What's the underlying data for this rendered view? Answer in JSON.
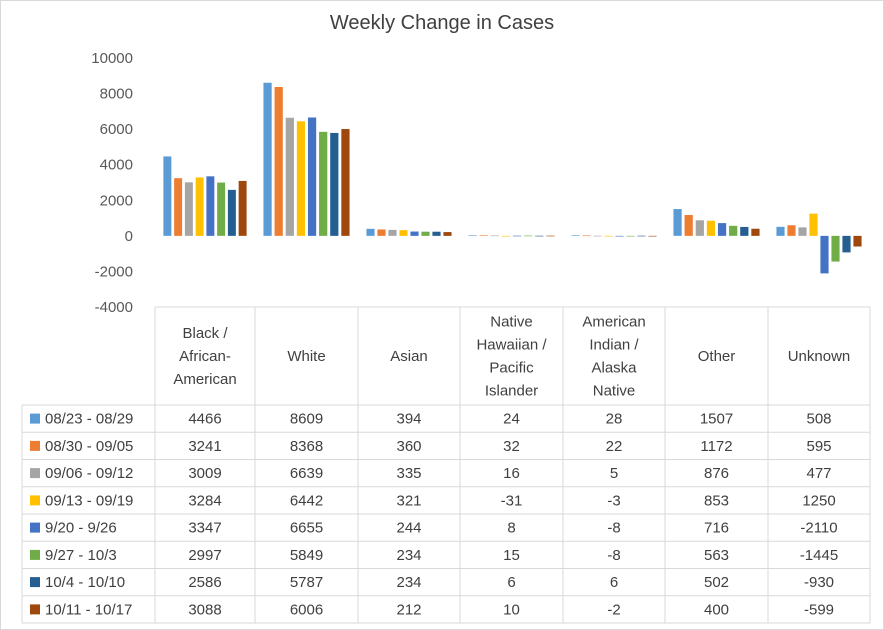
{
  "chart_data": {
    "type": "bar",
    "title": "Weekly Change in Cases",
    "categories": [
      [
        "Black /",
        "African-",
        "American"
      ],
      [
        "White"
      ],
      [
        "Asian"
      ],
      [
        "Native",
        "Hawaiian /",
        "Pacific",
        "Islander"
      ],
      [
        "American",
        "Indian /",
        "Alaska",
        "Native"
      ],
      [
        "Other"
      ],
      [
        "Unknown"
      ]
    ],
    "ylim": [
      -4000,
      10000
    ],
    "yticks": [
      10000,
      8000,
      6000,
      4000,
      2000,
      0,
      -2000,
      -4000
    ],
    "gridlines": false,
    "legend": "data-table",
    "series": [
      {
        "name": "08/23 - 08/29",
        "color": "#5B9BD5",
        "values": [
          4466,
          8609,
          394,
          24,
          28,
          1507,
          508
        ]
      },
      {
        "name": "08/30 - 09/05",
        "color": "#ED7D31",
        "values": [
          3241,
          8368,
          360,
          32,
          22,
          1172,
          595
        ]
      },
      {
        "name": "09/06 - 09/12",
        "color": "#A5A5A5",
        "values": [
          3009,
          6639,
          335,
          16,
          5,
          876,
          477
        ]
      },
      {
        "name": "09/13 - 09/19",
        "color": "#FFC000",
        "values": [
          3284,
          6442,
          321,
          -31,
          -3,
          853,
          1250
        ]
      },
      {
        "name": "9/20 - 9/26",
        "color": "#4472C4",
        "values": [
          3347,
          6655,
          244,
          8,
          -8,
          716,
          -2110
        ]
      },
      {
        "name": "9/27 - 10/3",
        "color": "#70AD47",
        "values": [
          2997,
          5849,
          234,
          15,
          -8,
          563,
          -1445
        ]
      },
      {
        "name": "10/4 - 10/10",
        "color": "#255E91",
        "values": [
          2586,
          5787,
          234,
          6,
          6,
          502,
          -930
        ]
      },
      {
        "name": "10/11 - 10/17",
        "color": "#9E480E",
        "values": [
          3088,
          6006,
          212,
          10,
          -2,
          400,
          -599
        ]
      }
    ]
  }
}
